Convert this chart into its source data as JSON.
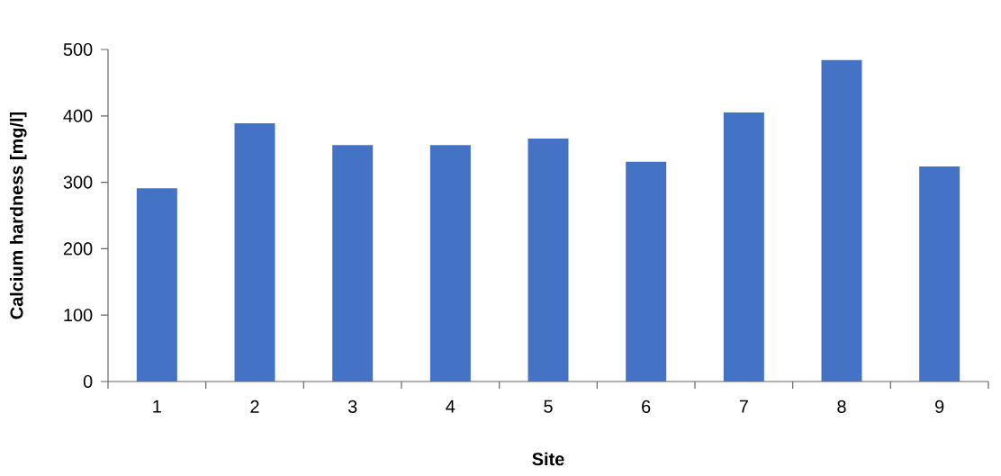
{
  "chart_data": {
    "type": "bar",
    "xlabel": "Site",
    "ylabel": "Calcium hardness [mg/l]",
    "categories": [
      "1",
      "2",
      "3",
      "4",
      "5",
      "6",
      "7",
      "8",
      "9"
    ],
    "values": [
      291,
      389,
      356,
      356,
      366,
      331,
      405,
      484,
      324
    ],
    "color": "#4472c4",
    "ylim": [
      0,
      500
    ],
    "yticks": [
      0,
      100,
      200,
      300,
      400,
      500
    ],
    "grid": false
  }
}
